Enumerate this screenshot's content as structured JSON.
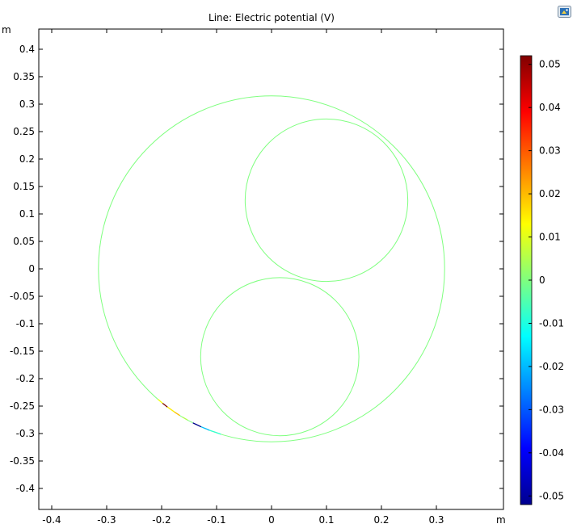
{
  "chart_data": {
    "type": "line",
    "title": "Line: Electric potential (V)",
    "x_unit": "m",
    "y_unit": "m",
    "xlim": [
      -0.42,
      0.42
    ],
    "ylim": [
      -0.44,
      0.43
    ],
    "x_ticks": [
      -0.4,
      -0.3,
      -0.2,
      -0.1,
      0,
      0.1,
      0.2,
      0.3
    ],
    "x_tick_labels": [
      "-0.4",
      "-0.3",
      "-0.2",
      "-0.1",
      "0",
      "0.1",
      "0.2",
      "0.3"
    ],
    "y_ticks": [
      0.4,
      0.35,
      0.3,
      0.25,
      0.2,
      0.15,
      0.1,
      0.05,
      0,
      -0.05,
      -0.1,
      -0.15,
      -0.2,
      -0.25,
      -0.3,
      -0.35,
      -0.4
    ],
    "y_tick_labels": [
      "0.4",
      "0.35",
      "0.3",
      "0.25",
      "0.2",
      "0.15",
      "0.1",
      "0.05",
      "0",
      "-0.05",
      "-0.1",
      "-0.15",
      "-0.2",
      "-0.25",
      "-0.3",
      "-0.35",
      "-0.4"
    ],
    "grid": false,
    "colormap": "rainbow",
    "colorbar_range": [
      -0.052,
      0.052
    ],
    "colorbar_ticks": [
      0.05,
      0.04,
      0.03,
      0.02,
      0.01,
      0,
      -0.01,
      -0.02,
      -0.03,
      -0.04,
      -0.05
    ],
    "colorbar_tick_labels": [
      "0.05",
      "0.04",
      "0.03",
      "0.02",
      "0.01",
      "0",
      "-0.01",
      "-0.02",
      "-0.03",
      "-0.04",
      "-0.05"
    ],
    "legend": "colorbar-right",
    "circles": [
      {
        "name": "outer-boundary",
        "cx": 0.0,
        "cy": 0.0,
        "r": 0.315,
        "value": 0
      },
      {
        "name": "upper-conductor",
        "cx": 0.1,
        "cy": 0.125,
        "r": 0.148,
        "value": 0
      },
      {
        "name": "lower-conductor",
        "cx": 0.015,
        "cy": -0.16,
        "r": 0.144,
        "value": 0
      }
    ],
    "arc_segments": [
      {
        "t_start_deg": 238,
        "t_end_deg": 236,
        "value": 0.02
      },
      {
        "t_start_deg": 236,
        "t_end_deg": 233,
        "value": 0.015
      },
      {
        "t_start_deg": 233,
        "t_end_deg": 231,
        "value": 0.052
      },
      {
        "t_start_deg": 231,
        "t_end_deg": 229,
        "value": 0.012
      },
      {
        "t_start_deg": 241,
        "t_end_deg": 239,
        "value": 0.005
      },
      {
        "t_start_deg": 246,
        "t_end_deg": 243,
        "value": -0.052
      },
      {
        "t_start_deg": 249,
        "t_end_deg": 246,
        "value": -0.02
      },
      {
        "t_start_deg": 253,
        "t_end_deg": 249,
        "value": -0.008
      }
    ]
  },
  "colors": {
    "axis": "#000000",
    "baseline_line": "#78f078"
  },
  "toolbar": {
    "icon": "image-icon"
  }
}
